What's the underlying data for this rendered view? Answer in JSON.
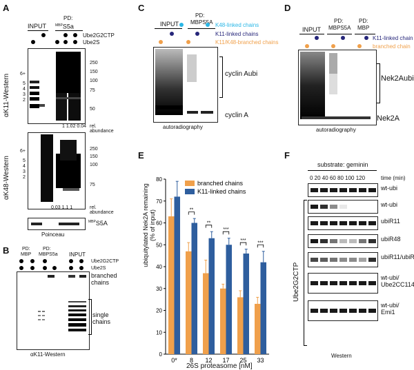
{
  "panels": {
    "A": {
      "label": "A",
      "col_input": "INPUT",
      "col_pd": "PD:",
      "col_pd_bait": "MBP",
      "col_pd_bait2": "S5a",
      "row1": "Ube2G2CTP",
      "row2": "Ube2S",
      "axis_top": "αK11-Western",
      "axis_bottom": "αK48-Western",
      "markers": [
        "250",
        "150",
        "100",
        "75",
        "50"
      ],
      "ladder_top": [
        "6+",
        "5",
        "4",
        "3",
        "2"
      ],
      "abund_top": "1  1.02  0.04",
      "abund_bottom": "0.03  1.1  1",
      "rel": "rel.",
      "abundance": "abundance",
      "loading": "MBPS5A",
      "loading_sup": "MBP",
      "loading_main": "S5A",
      "ponceau": "Poinceau"
    },
    "B": {
      "label": "B",
      "pd1": "PD:",
      "pd1b": "MBP",
      "pd2": "PD:",
      "pd2b": "MBPS5a",
      "input": "INPUT",
      "row1": "Ube2G2CTP",
      "row2": "Ube2S",
      "branched": "branched",
      "chains": "chains",
      "single": "single",
      "single_chains": "chains",
      "axis": "αK11-Western"
    },
    "C": {
      "label": "C",
      "input": "INPUT",
      "pd": "PD:",
      "pd_bait": "MBPS5A",
      "leg1": "K48-linked chains",
      "leg2": "K11-linked chains",
      "leg3": "K11/K48-branched chains",
      "cyclin_ubi": "cyclin Aubi",
      "cyclin": "cyclin A",
      "caption": "autoradiography"
    },
    "D": {
      "label": "D",
      "input": "INPUT",
      "pd1": "PD:",
      "pd1b": "MBPS5A",
      "pd2": "PD:",
      "pd2b": "MBP",
      "leg1": "K11-linked chain",
      "leg2": "branched chain",
      "nek_ubi": "Nek2Aubi",
      "nek": "Nek2A",
      "caption": "autoradiography"
    },
    "E": {
      "label": "E",
      "ylabel1": "ubiquitylated Nek2A remaining",
      "ylabel2": "(% of input)",
      "xlabel": "26S proteasome [nM]"
    },
    "F": {
      "label": "F",
      "substrate": "substrate: geminin",
      "times": "0  20  40  60  80 100 120",
      "time_label": "time (min)",
      "enzyme": "Ube2G2CTP",
      "caption": "Western",
      "rows": [
        "wt-ubi",
        "wt-ubi",
        "ubiR11",
        "ubiR48",
        "ubiR11/ubiR48",
        "wt-ubi/ Ube2CC114S",
        "wt-ubi/ Emi1"
      ]
    }
  },
  "chart_data": {
    "type": "bar",
    "title": "",
    "xlabel": "26S proteasome [nM]",
    "ylabel": "ubiquitylated Nek2A remaining (% of input)",
    "categories": [
      "0*",
      "8",
      "12",
      "17",
      "25",
      "33"
    ],
    "ylim": [
      0,
      80
    ],
    "yticks": [
      0,
      10,
      20,
      30,
      40,
      50,
      60,
      70,
      80
    ],
    "series": [
      {
        "name": "branched chains",
        "color": "#f0a04b",
        "values": [
          63,
          47,
          37,
          30,
          26,
          23
        ],
        "errors": [
          8,
          4,
          6,
          2,
          3,
          3
        ]
      },
      {
        "name": "K11-linked chains",
        "color": "#2e5e9e",
        "values": [
          72,
          60,
          53,
          50,
          46,
          42
        ],
        "errors": [
          7,
          2,
          3,
          3,
          2,
          5
        ]
      }
    ],
    "significance": [
      "",
      "**",
      "**",
      "***",
      "***",
      "***"
    ],
    "legend": "top-right"
  },
  "colors": {
    "orange": "#f0a04b",
    "blue": "#2e5e9e",
    "navy": "#26267a",
    "cyan": "#29b6e6"
  }
}
